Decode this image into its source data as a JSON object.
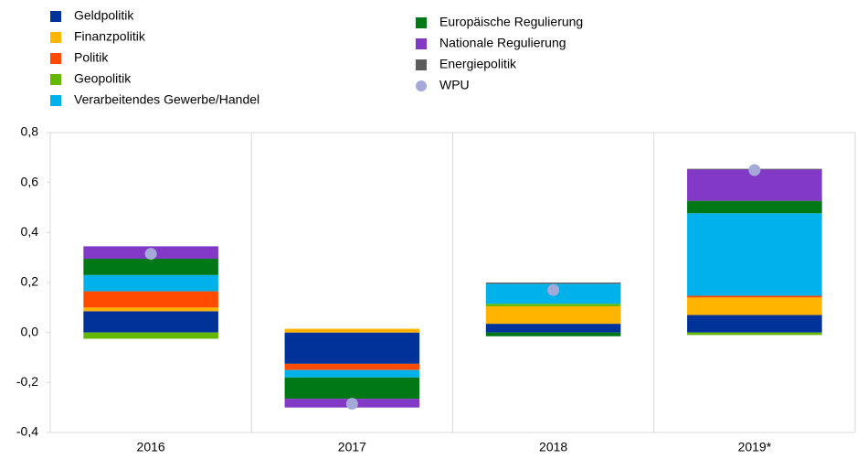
{
  "chart_data": {
    "type": "bar",
    "stacked": true,
    "categories": [
      "2016",
      "2017",
      "2018",
      "2019*"
    ],
    "series": [
      {
        "name": "Geldpolitik",
        "color": "#003299",
        "values": [
          0.085,
          -0.125,
          0.035,
          0.07
        ]
      },
      {
        "name": "Finanzpolitik",
        "color": "#ffb400",
        "values": [
          0.015,
          0.015,
          0.07,
          0.07
        ]
      },
      {
        "name": "Politik",
        "color": "#ff4b00",
        "values": [
          0.065,
          -0.025,
          0,
          0.007
        ]
      },
      {
        "name": "Geopolitik",
        "color": "#65b800",
        "values": [
          -0.025,
          0,
          0.01,
          -0.01
        ]
      },
      {
        "name": "Verarbeitendes Gewerbe/Handel",
        "color": "#00b1ea",
        "values": [
          0.065,
          -0.03,
          0.08,
          0.33
        ]
      },
      {
        "name": "Europäische Regulierung",
        "color": "#007816",
        "values": [
          0.065,
          -0.085,
          -0.015,
          0.05
        ]
      },
      {
        "name": "Nationale Regulierung",
        "color": "#8139c6",
        "values": [
          0.05,
          -0.035,
          0,
          0.125
        ]
      },
      {
        "name": "Energiepolitik",
        "color": "#5c5c5c",
        "values": [
          0,
          0,
          0.005,
          0.003
        ]
      },
      {
        "name": "WPU",
        "color": "#a4a9d8",
        "type": "scatter",
        "values": [
          0.315,
          -0.285,
          0.17,
          0.65
        ]
      }
    ],
    "ylim": [
      -0.4,
      0.8
    ],
    "yticks": [
      {
        "value": -0.4,
        "label": "-0,4"
      },
      {
        "value": -0.2,
        "label": "-0,2"
      },
      {
        "value": 0,
        "label": "0,0"
      },
      {
        "value": 0.2,
        "label": "0,2"
      },
      {
        "value": 0.4,
        "label": "0,4"
      },
      {
        "value": 0.6,
        "label": "0,6"
      },
      {
        "value": 0.8,
        "label": "0,8"
      }
    ],
    "legend": "top"
  }
}
